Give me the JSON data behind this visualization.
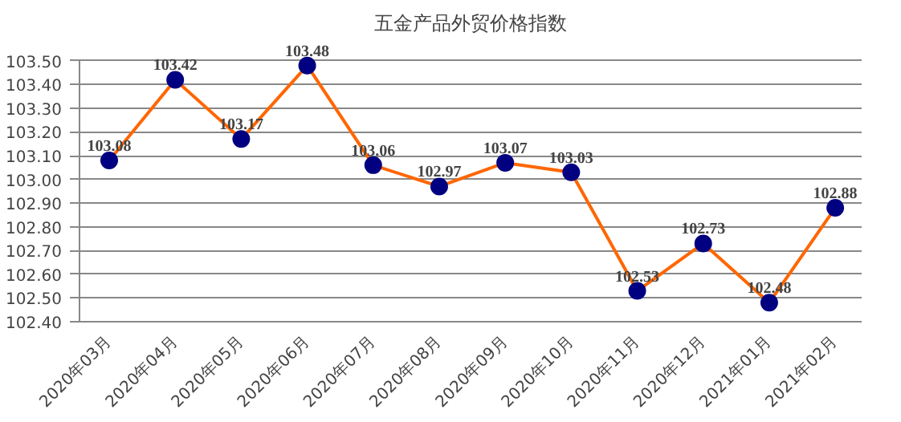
{
  "chart_data": {
    "type": "line",
    "title": "五金产品外贸价格指数",
    "categories": [
      "2020年03月",
      "2020年04月",
      "2020年05月",
      "2020年06月",
      "2020年07月",
      "2020年08月",
      "2020年09月",
      "2020年10月",
      "2020年11月",
      "2020年12月",
      "2021年01月",
      "2021年02月"
    ],
    "series": [
      {
        "color": "#ff6600",
        "colors": [
          "#000080",
          "#000080",
          "#000080",
          "#000080",
          "#000080",
          "#000080",
          "#000080",
          "#000080",
          "#000080",
          "#000080",
          "#000080",
          "#000080"
        ],
        "values": [
          103.08,
          103.42,
          103.17,
          103.48,
          103.06,
          102.97,
          103.07,
          103.03,
          102.53,
          102.73,
          102.48,
          102.88
        ]
      }
    ],
    "ylim": [
      102.4,
      103.5
    ],
    "yticks": [
      {
        "value": 102.4,
        "label": "102.40"
      },
      {
        "value": 102.5,
        "label": "102.50"
      },
      {
        "value": 102.6,
        "label": "102.60"
      },
      {
        "value": 102.7,
        "label": "102.70"
      },
      {
        "value": 102.8,
        "label": "102.80"
      },
      {
        "value": 102.9,
        "label": "102.90"
      },
      {
        "value": 103.0,
        "label": "103.00"
      },
      {
        "value": 103.1,
        "label": "103.10"
      },
      {
        "value": 103.2,
        "label": "103.20"
      },
      {
        "value": 103.3,
        "label": "103.30"
      },
      {
        "value": 103.4,
        "label": "103.40"
      },
      {
        "value": 103.5,
        "label": "103.50"
      }
    ],
    "grid": "y",
    "marker": "circle",
    "data_labels": true
  }
}
